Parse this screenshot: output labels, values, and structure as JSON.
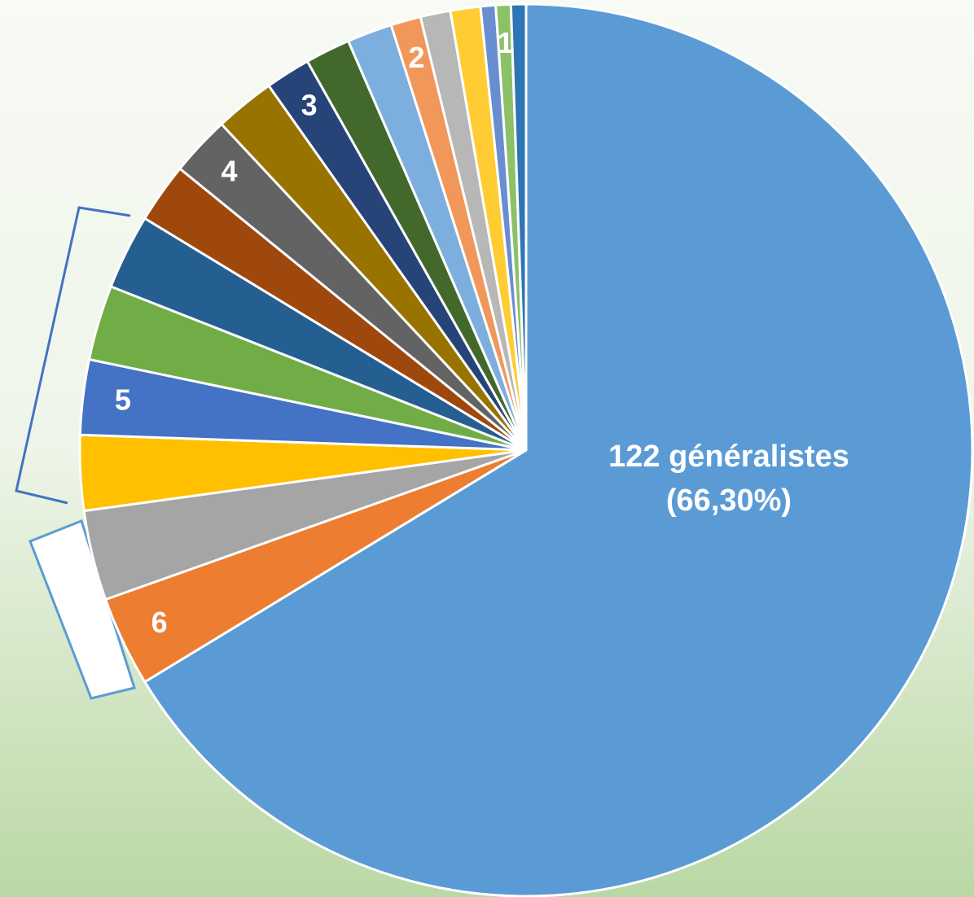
{
  "chart_data": {
    "type": "pie",
    "values": [
      122,
      6,
      6,
      5,
      5,
      5,
      5,
      4,
      4,
      4,
      3,
      3,
      3,
      2,
      2,
      2,
      1,
      1,
      1
    ],
    "value_labels": [
      "122 généralistes\n(66,30%)",
      "6",
      null,
      null,
      "5",
      null,
      null,
      null,
      "4",
      null,
      "3",
      null,
      null,
      "2",
      null,
      null,
      null,
      "1",
      null
    ],
    "colors": [
      "#5b9bd5",
      "#ed7d31",
      "#a5a5a5",
      "#ffc000",
      "#4472c4",
      "#70ad47",
      "#255e91",
      "#9e480e",
      "#636363",
      "#997300",
      "#264478",
      "#43682b",
      "#7cafdd",
      "#f1975a",
      "#b7b7b7",
      "#ffcd33",
      "#698ed0",
      "#8cc168",
      "#2e75b6"
    ]
  }
}
